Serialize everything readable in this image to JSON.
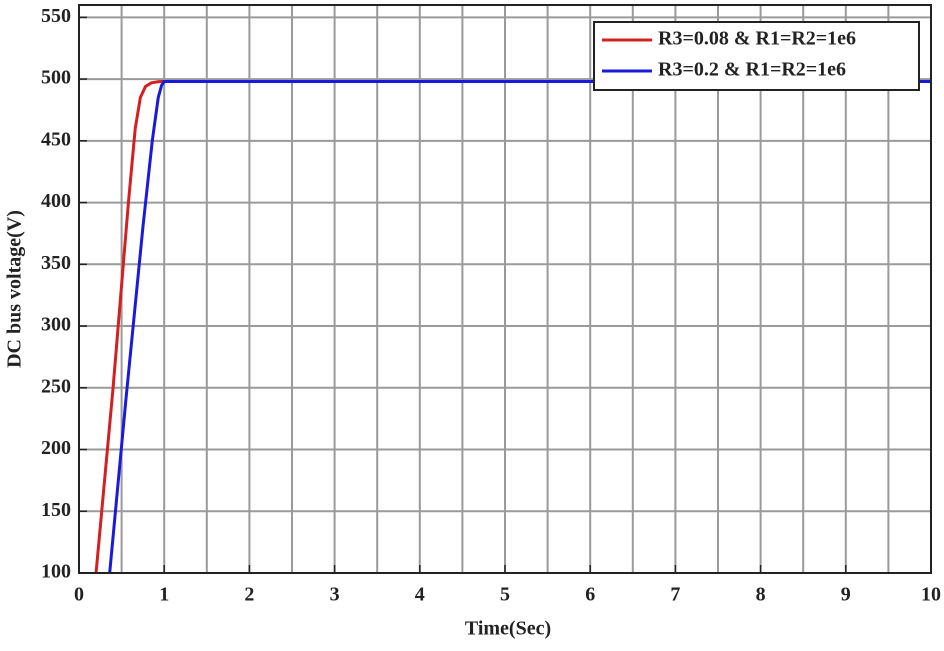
{
  "chart_data": {
    "type": "line",
    "xlabel": "Time(Sec)",
    "ylabel": "DC bus voltage(V)",
    "xlim": [
      0,
      10
    ],
    "ylim": [
      100,
      560
    ],
    "xticks": [
      0,
      1,
      2,
      3,
      4,
      5,
      6,
      7,
      8,
      9,
      10
    ],
    "yticks": [
      100,
      150,
      200,
      250,
      300,
      350,
      400,
      450,
      500,
      550
    ],
    "xminorgrid": [
      0.5,
      1.5,
      2.5,
      3.5,
      4.5,
      5.5,
      6.5,
      7.5,
      8.5,
      9.5
    ],
    "grid": true,
    "legend": "northeast",
    "series": [
      {
        "name": "R3=0.08 & R1=R2=1e6",
        "color": "#d42020",
        "x": [
          0.2,
          0.4,
          0.58,
          0.66,
          0.72,
          0.78,
          0.85,
          0.95,
          10
        ],
        "values": [
          100,
          250,
          400,
          460,
          485,
          494,
          497,
          498,
          498
        ]
      },
      {
        "name": "R3=0.2 & R1=R2=1e6",
        "color": "#1a1adc",
        "x": [
          0.36,
          0.55,
          0.75,
          0.86,
          0.93,
          0.97,
          1.0,
          10
        ],
        "values": [
          100,
          240,
          380,
          450,
          485,
          495,
          498,
          498
        ]
      }
    ]
  }
}
